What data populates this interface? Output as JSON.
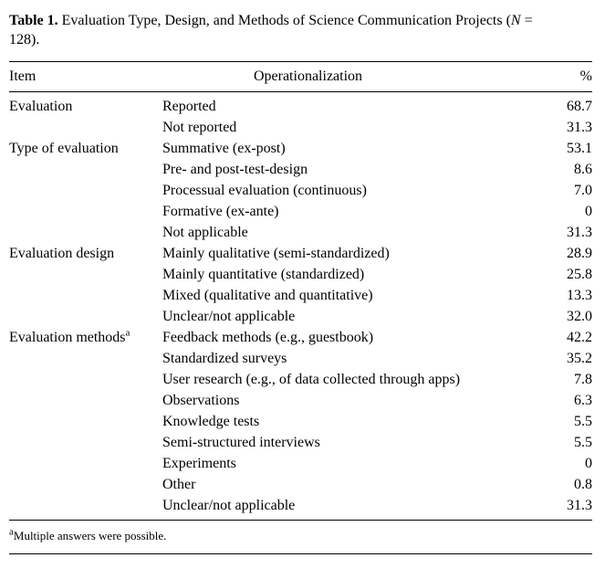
{
  "caption": {
    "label": "Table 1.",
    "text": " Evaluation Type, Design, and Methods of Science Communication Projects (",
    "n_symbol": "N",
    "n_suffix": " = 128)."
  },
  "table": {
    "headers": {
      "item": "Item",
      "operationalization": "Operationalization",
      "percent": "%"
    },
    "rows": [
      {
        "item": "Evaluation",
        "sup": "",
        "operationalization": "Reported",
        "pct": "68.7"
      },
      {
        "item": "",
        "sup": "",
        "operationalization": "Not reported",
        "pct": "31.3"
      },
      {
        "item": "Type of evaluation",
        "sup": "",
        "operationalization": "Summative (ex-post)",
        "pct": "53.1"
      },
      {
        "item": "",
        "sup": "",
        "operationalization": "Pre- and post-test-design",
        "pct": "8.6"
      },
      {
        "item": "",
        "sup": "",
        "operationalization": "Processual evaluation (continuous)",
        "pct": "7.0"
      },
      {
        "item": "",
        "sup": "",
        "operationalization": "Formative (ex-ante)",
        "pct": "0"
      },
      {
        "item": "",
        "sup": "",
        "operationalization": "Not applicable",
        "pct": "31.3"
      },
      {
        "item": "Evaluation design",
        "sup": "",
        "operationalization": "Mainly qualitative (semi-standardized)",
        "pct": "28.9"
      },
      {
        "item": "",
        "sup": "",
        "operationalization": "Mainly quantitative (standardized)",
        "pct": "25.8"
      },
      {
        "item": "",
        "sup": "",
        "operationalization": "Mixed (qualitative and quantitative)",
        "pct": "13.3"
      },
      {
        "item": "",
        "sup": "",
        "operationalization": "Unclear/not applicable",
        "pct": "32.0"
      },
      {
        "item": "Evaluation methods",
        "sup": "a",
        "operationalization": "Feedback methods (e.g., guestbook)",
        "pct": "42.2"
      },
      {
        "item": "",
        "sup": "",
        "operationalization": "Standardized surveys",
        "pct": "35.2"
      },
      {
        "item": "",
        "sup": "",
        "operationalization": "User research (e.g., of data collected through apps)",
        "pct": "7.8"
      },
      {
        "item": "",
        "sup": "",
        "operationalization": "Observations",
        "pct": "6.3"
      },
      {
        "item": "",
        "sup": "",
        "operationalization": "Knowledge tests",
        "pct": "5.5"
      },
      {
        "item": "",
        "sup": "",
        "operationalization": "Semi-structured interviews",
        "pct": "5.5"
      },
      {
        "item": "",
        "sup": "",
        "operationalization": "Experiments",
        "pct": "0"
      },
      {
        "item": "",
        "sup": "",
        "operationalization": "Other",
        "pct": "0.8"
      },
      {
        "item": "",
        "sup": "",
        "operationalization": "Unclear/not applicable",
        "pct": "31.3"
      }
    ]
  },
  "footnote": {
    "marker": "a",
    "text": "Multiple answers were possible."
  }
}
